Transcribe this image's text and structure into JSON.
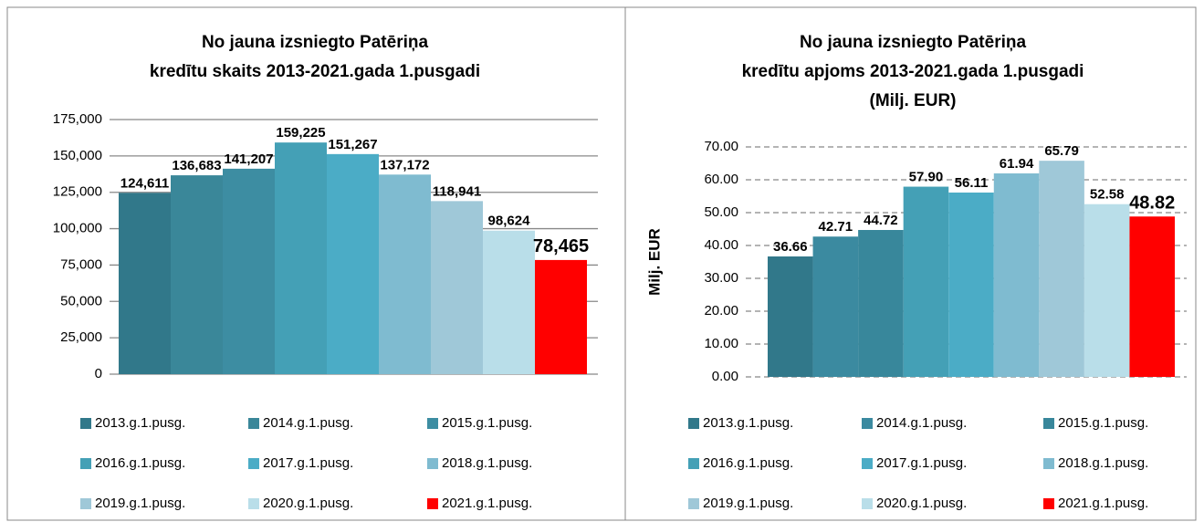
{
  "chart_data": [
    {
      "type": "bar",
      "title": [
        "No jauna izsniegto Patēriņa",
        "kredītu skaits 2013-2021.gada 1.pusgadi"
      ],
      "ylim": [
        0,
        175000
      ],
      "yticks": [
        0,
        {
          "value": 25000,
          "label": "25,000"
        },
        {
          "value": 50000,
          "label": "50,000"
        },
        {
          "value": 75000,
          "label": "75,000"
        },
        {
          "value": 100000,
          "label": "100,000"
        },
        {
          "value": 125000,
          "label": "125,000"
        },
        {
          "value": 150000,
          "label": "150,000"
        },
        {
          "value": 175000,
          "label": "175,000"
        }
      ],
      "grid": "solid",
      "series": [
        {
          "name": "2013.g.1.pusg.",
          "color": "#31788a",
          "values": [
            124611
          ],
          "value_labels": [
            "124,611"
          ]
        },
        {
          "name": "2014.g.1.pusg.",
          "color": "#3a8799",
          "values": [
            136683
          ],
          "value_labels": [
            "136,683"
          ]
        },
        {
          "name": "2015.g.1.pusg.",
          "color": "#3d8da2",
          "values": [
            141207
          ],
          "value_labels": [
            "141,207"
          ]
        },
        {
          "name": "2016.g.1.pusg.",
          "color": "#44a0b6",
          "values": [
            159225
          ],
          "value_labels": [
            "159,225"
          ]
        },
        {
          "name": "2017.g.1.pusg.",
          "color": "#4bacc6",
          "values": [
            151267
          ],
          "value_labels": [
            "151,267"
          ]
        },
        {
          "name": "2018.g.1.pusg.",
          "color": "#7fbbd0",
          "values": [
            137172
          ],
          "value_labels": [
            "137,172"
          ]
        },
        {
          "name": "2019.g.1.pusg.",
          "color": "#9fc8d8",
          "values": [
            118941
          ],
          "value_labels": [
            "118,941"
          ]
        },
        {
          "name": "2020.g.1.pusg.",
          "color": "#b9dee9",
          "values": [
            98624
          ],
          "value_labels": [
            "98,624"
          ]
        },
        {
          "name": "2021.g.1.pusg.",
          "color": "#ff0000",
          "values": [
            78465
          ],
          "value_labels": [
            "78,465"
          ]
        }
      ]
    },
    {
      "type": "bar",
      "title": [
        "No jauna izsniegto Patēriņa",
        "kredītu apjoms 2013-2021.gada 1.pusgadi",
        "(Milj. EUR)"
      ],
      "ylabel": "Milj. EUR",
      "ylim": [
        0,
        70
      ],
      "yticks": [
        {
          "value": 0,
          "label": "0.00"
        },
        {
          "value": 10,
          "label": "10.00"
        },
        {
          "value": 20,
          "label": "20.00"
        },
        {
          "value": 30,
          "label": "30.00"
        },
        {
          "value": 40,
          "label": "40.00"
        },
        {
          "value": 50,
          "label": "50.00"
        },
        {
          "value": 60,
          "label": "60.00"
        },
        {
          "value": 70,
          "label": "70.00"
        }
      ],
      "grid": "dashed",
      "series": [
        {
          "name": "2013.g.1.pusg.",
          "color": "#31788a",
          "values": [
            36.66
          ]
        },
        {
          "name": "2014.g.1.pusg.",
          "color": "#3b8aa0",
          "values": [
            42.71
          ]
        },
        {
          "name": "2015.g.1.pusg.",
          "color": "#38879b",
          "values": [
            44.72
          ]
        },
        {
          "name": "2016.g.1.pusg.",
          "color": "#44a0b6",
          "values": [
            57.9
          ],
          "value_labels": [
            "57.90"
          ]
        },
        {
          "name": "2017.g.1.pusg.",
          "color": "#4bacc6",
          "values": [
            56.11
          ]
        },
        {
          "name": "2018.g.1.pusg.",
          "color": "#7fbbd0",
          "values": [
            61.94
          ]
        },
        {
          "name": "2019.g.1.pusg.",
          "color": "#9fc8d8",
          "values": [
            65.79
          ]
        },
        {
          "name": "2020.g.1.pusg.",
          "color": "#b9dee9",
          "values": [
            52.58
          ]
        },
        {
          "name": "2021.g.1.pusg.",
          "color": "#ff0000",
          "values": [
            48.82
          ]
        }
      ]
    }
  ]
}
